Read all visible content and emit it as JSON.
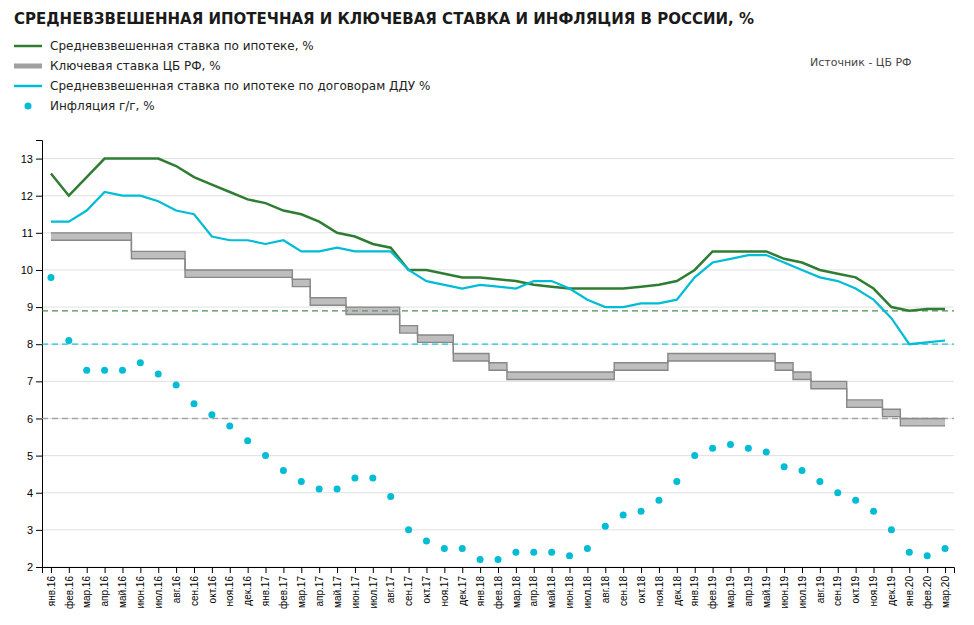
{
  "chart_data": {
    "type": "line",
    "title": "СРЕДНЕВЗВЕШЕННАЯ ИПОТЕЧНАЯ  И КЛЮЧЕВАЯ СТАВКА И ИНФЛЯЦИЯ В РОССИИ, %",
    "annotations": [
      "Источник  -  ЦБ РФ"
    ],
    "categories": [
      "янв.16",
      "фев.16",
      "мар.16",
      "апр.16",
      "май.16",
      "июн.16",
      "июл.16",
      "авг.16",
      "сен.16",
      "окт.16",
      "ноя.16",
      "дек.16",
      "янв.17",
      "фев.17",
      "мар.17",
      "апр.17",
      "май.17",
      "июн.17",
      "июл.17",
      "авг.17",
      "сен.17",
      "окт.17",
      "ноя.17",
      "дек.17",
      "янв.18",
      "фев.18",
      "мар.18",
      "апр.18",
      "май.18",
      "июн.18",
      "июл.18",
      "авг.18",
      "сен.18",
      "окт.18",
      "ноя.18",
      "дек.18",
      "янв.19",
      "фев.19",
      "мар.19",
      "апр.19",
      "май.19",
      "июн.19",
      "июл.19",
      "авг.19",
      "сен.19",
      "окт.19",
      "ноя.19",
      "дек.19",
      "янв.20",
      "фев.20",
      "мар.20"
    ],
    "series": [
      {
        "name": "Средневзвешенная ставка по ипотеке, %",
        "type": "line",
        "color": "#2e7d32",
        "line_style": "solid",
        "values": [
          12.6,
          12.0,
          12.5,
          13.0,
          13.0,
          13.0,
          13.0,
          12.8,
          12.5,
          12.3,
          12.1,
          11.9,
          11.8,
          11.6,
          11.5,
          11.3,
          11.0,
          10.9,
          10.7,
          10.6,
          10.0,
          10.0,
          9.9,
          9.8,
          9.8,
          9.75,
          9.7,
          9.6,
          9.55,
          9.5,
          9.5,
          9.5,
          9.5,
          9.55,
          9.6,
          9.7,
          10.0,
          10.5,
          10.5,
          10.5,
          10.5,
          10.3,
          10.2,
          10.0,
          9.9,
          9.8,
          9.5,
          9.0,
          8.9,
          8.95,
          8.95
        ]
      },
      {
        "name": "Ключевая ставка ЦБ РФ, %",
        "type": "band",
        "color": "#888888",
        "line_style": "step",
        "values": [
          11.0,
          11.0,
          11.0,
          11.0,
          11.0,
          10.5,
          10.5,
          10.5,
          10.0,
          10.0,
          10.0,
          10.0,
          10.0,
          10.0,
          9.75,
          9.25,
          9.25,
          9.0,
          9.0,
          9.0,
          8.5,
          8.25,
          8.25,
          7.75,
          7.75,
          7.5,
          7.25,
          7.25,
          7.25,
          7.25,
          7.25,
          7.25,
          7.5,
          7.5,
          7.5,
          7.75,
          7.75,
          7.75,
          7.75,
          7.75,
          7.75,
          7.5,
          7.25,
          7.0,
          7.0,
          6.5,
          6.5,
          6.25,
          6.0,
          6.0,
          6.0
        ],
        "lower": [
          10.8,
          10.8,
          10.8,
          10.8,
          10.8,
          10.3,
          10.3,
          10.3,
          9.8,
          9.8,
          9.8,
          9.8,
          9.8,
          9.8,
          9.55,
          9.05,
          9.05,
          8.8,
          8.8,
          8.8,
          8.3,
          8.05,
          8.05,
          7.55,
          7.55,
          7.3,
          7.05,
          7.05,
          7.05,
          7.05,
          7.05,
          7.05,
          7.3,
          7.3,
          7.3,
          7.55,
          7.55,
          7.55,
          7.55,
          7.55,
          7.55,
          7.3,
          7.05,
          6.8,
          6.8,
          6.3,
          6.3,
          6.05,
          5.8,
          5.8,
          5.8
        ]
      },
      {
        "name": "Средневзвешенная ставка по ипотеке по договорам ДДУ %",
        "type": "line",
        "color": "#00bcd4",
        "line_style": "solid",
        "values": [
          11.3,
          11.3,
          11.6,
          12.1,
          12.0,
          12.0,
          11.85,
          11.6,
          11.5,
          10.9,
          10.8,
          10.8,
          10.7,
          10.8,
          10.5,
          10.5,
          10.6,
          10.5,
          10.5,
          10.5,
          10.0,
          9.7,
          9.6,
          9.5,
          9.6,
          9.55,
          9.5,
          9.7,
          9.7,
          9.5,
          9.2,
          9.0,
          9.0,
          9.1,
          9.1,
          9.2,
          9.8,
          10.2,
          10.3,
          10.4,
          10.4,
          10.2,
          10.0,
          9.8,
          9.7,
          9.5,
          9.2,
          8.7,
          8.0,
          8.05,
          8.1
        ]
      },
      {
        "name": "Инфляция г/г,  %",
        "type": "scatter",
        "color": "#00bcd4",
        "marker": "circle",
        "values": [
          9.8,
          8.1,
          7.3,
          7.3,
          7.3,
          7.5,
          7.2,
          6.9,
          6.4,
          6.1,
          5.8,
          5.4,
          5.0,
          4.6,
          4.3,
          4.1,
          4.1,
          4.4,
          4.4,
          3.9,
          3.0,
          2.7,
          2.5,
          2.5,
          2.2,
          2.2,
          2.4,
          2.4,
          2.4,
          2.3,
          2.5,
          3.1,
          3.4,
          3.5,
          3.8,
          4.3,
          5.0,
          5.2,
          5.3,
          5.2,
          5.1,
          4.7,
          4.6,
          4.3,
          4.0,
          3.8,
          3.5,
          3.0,
          2.4,
          2.3,
          2.5
        ]
      }
    ],
    "reference_lines": [
      {
        "value": 8.9,
        "color": "#2e7d32",
        "line_style": "dashed"
      },
      {
        "value": 8.0,
        "color": "#00bcd4",
        "line_style": "dashed"
      },
      {
        "value": 6.0,
        "color": "#999999",
        "line_style": "dashed"
      }
    ],
    "ylim": [
      2,
      13.5
    ],
    "yticks": [
      2,
      3,
      4,
      5,
      6,
      7,
      8,
      9,
      10,
      11,
      12,
      13
    ],
    "grid": true
  }
}
